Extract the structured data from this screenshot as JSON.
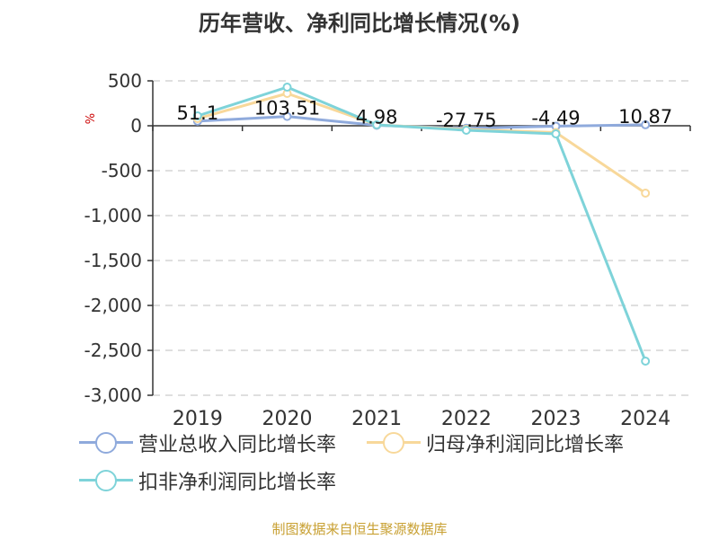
{
  "title": "历年营收、净利同比增长情况(%)",
  "source": "制图数据来自恒生聚源数据库",
  "chart_data": {
    "type": "line",
    "ylabel": "%",
    "categories": [
      "2019",
      "2020",
      "2021",
      "2022",
      "2023",
      "2024"
    ],
    "ylim": [
      -3000,
      500
    ],
    "yticks": [
      500,
      0,
      -500,
      -1000,
      -1500,
      -2000,
      -2500,
      -3000
    ],
    "ytick_labels": [
      "500",
      "0",
      "-500",
      "-1,000",
      "-1,500",
      "-2,000",
      "-2,500",
      "-3,000"
    ],
    "grid": true,
    "legend_position": "bottom",
    "series": [
      {
        "name": "营业总收入同比增长率",
        "color": "#8faadc",
        "values": [
          51.1,
          103.51,
          4.98,
          -27.75,
          -4.49,
          10.87
        ],
        "labels": [
          "51.1",
          "103.51",
          "4.98",
          "-27.75",
          "-4.49",
          "10.87"
        ]
      },
      {
        "name": "归母净利润同比增长率",
        "color": "#f8d89a",
        "values": [
          80,
          360,
          10,
          -40,
          -75,
          -750
        ]
      },
      {
        "name": "扣非净利润同比增长率",
        "color": "#7ed3d9",
        "values": [
          110,
          430,
          10,
          -50,
          -90,
          -2620
        ]
      }
    ]
  }
}
